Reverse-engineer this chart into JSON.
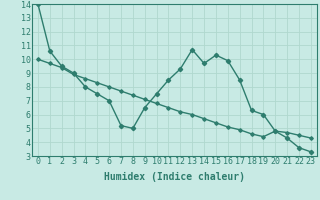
{
  "xlabel": "Humidex (Indice chaleur)",
  "bg_color": "#c8eae4",
  "line_color": "#2e7d6e",
  "grid_color": "#b0d8ce",
  "xlim": [
    -0.5,
    23.5
  ],
  "ylim": [
    3,
    14
  ],
  "xticks": [
    0,
    1,
    2,
    3,
    4,
    5,
    6,
    7,
    8,
    9,
    10,
    11,
    12,
    13,
    14,
    15,
    16,
    17,
    18,
    19,
    20,
    21,
    22,
    23
  ],
  "yticks": [
    3,
    4,
    5,
    6,
    7,
    8,
    9,
    10,
    11,
    12,
    13,
    14
  ],
  "data_line": {
    "x": [
      0,
      1,
      2,
      3,
      4,
      5,
      6,
      7,
      8,
      9,
      10,
      11,
      12,
      13,
      14,
      15,
      16,
      17,
      18,
      19,
      20,
      21,
      22,
      23
    ],
    "y": [
      14.0,
      10.6,
      9.5,
      9.0,
      8.0,
      7.5,
      7.0,
      5.2,
      5.0,
      6.5,
      7.5,
      8.5,
      9.3,
      10.7,
      9.7,
      10.3,
      9.9,
      8.5,
      6.3,
      6.0,
      4.8,
      4.3,
      3.6,
      3.3
    ]
  },
  "trend_line": {
    "x": [
      0,
      1,
      2,
      3,
      4,
      5,
      6,
      7,
      8,
      9,
      10,
      11,
      12,
      13,
      14,
      15,
      16,
      17,
      18,
      19,
      20,
      21,
      22,
      23
    ],
    "y": [
      10.0,
      9.7,
      9.4,
      8.9,
      8.6,
      8.3,
      8.0,
      7.7,
      7.4,
      7.1,
      6.8,
      6.5,
      6.2,
      6.0,
      5.7,
      5.4,
      5.1,
      4.9,
      4.6,
      4.4,
      4.8,
      4.7,
      4.5,
      4.3
    ]
  },
  "tick_fontsize": 6,
  "xlabel_fontsize": 7,
  "marker": "D",
  "markersize_data": 2.2,
  "markersize_trend": 1.8,
  "linewidth": 1.0
}
